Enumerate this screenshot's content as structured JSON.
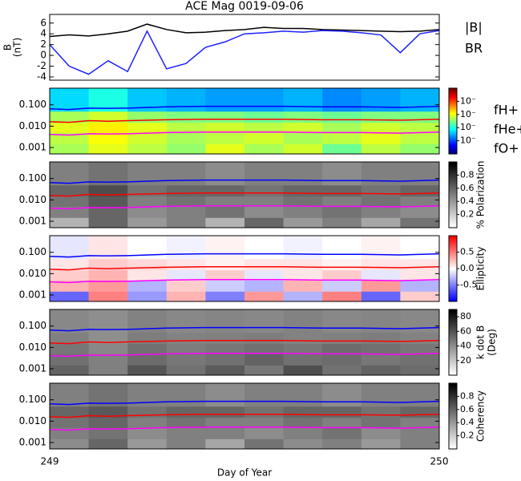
{
  "chart_data": [
    {
      "type": "line",
      "title": "ACE Mag 0019-09-06",
      "ylabel": [
        "B",
        "(nT)"
      ],
      "x": [
        249,
        249.05,
        249.1,
        249.15,
        249.2,
        249.25,
        249.3,
        249.35,
        249.4,
        249.45,
        249.5,
        249.55,
        249.6,
        249.65,
        249.7,
        249.75,
        249.8,
        249.85,
        249.9,
        249.95,
        250
      ],
      "series": [
        {
          "name": "|B|",
          "color": "#000000",
          "values": [
            3.5,
            3.8,
            3.6,
            4.0,
            4.5,
            5.8,
            4.8,
            4.2,
            4.3,
            4.6,
            4.8,
            5.2,
            5.0,
            5.0,
            4.8,
            4.7,
            4.6,
            4.5,
            4.4,
            4.5,
            4.8
          ]
        },
        {
          "name": "BR",
          "color": "#2020ff",
          "values": [
            2.0,
            -2.0,
            -3.5,
            -1.0,
            -3.0,
            4.5,
            -2.5,
            -1.5,
            1.5,
            2.5,
            4.0,
            4.2,
            4.5,
            4.3,
            4.6,
            4.5,
            4.2,
            3.8,
            0.5,
            4.0,
            4.6
          ]
        }
      ],
      "xlim": [
        249,
        250
      ],
      "ylim": [
        -4.6,
        7.6
      ],
      "yticks": [
        -4,
        -2,
        0,
        2,
        4,
        6
      ]
    },
    {
      "type": "heatmap",
      "colormap": "jet",
      "zlim": [
        -6,
        -1
      ],
      "cbar_ticks": [
        {
          "value": -2,
          "label": "10⁻"
        },
        {
          "value": -3,
          "label": "10⁻"
        },
        {
          "value": -4,
          "label": "10⁻"
        },
        {
          "value": -5,
          "label": "10⁻"
        }
      ],
      "cbar_label": [],
      "x_edges": [
        249,
        249.1,
        249.2,
        249.3,
        249.4,
        249.5,
        249.6,
        249.7,
        249.8,
        249.9,
        250
      ],
      "y_edges": [
        0.0005,
        0.0015,
        0.005,
        0.015,
        0.05,
        0.6
      ],
      "z": [
        [
          -3.3,
          -3.0,
          -3.2,
          -3.4,
          -3.0,
          -3.3,
          -3.1,
          -3.6,
          -3.2,
          -3.4
        ],
        [
          -3.2,
          -2.9,
          -3.1,
          -3.3,
          -3.2,
          -3.1,
          -3.3,
          -3.2,
          -3.0,
          -3.2
        ],
        [
          -3.0,
          -2.8,
          -3.0,
          -3.2,
          -3.1,
          -3.2,
          -3.1,
          -3.3,
          -3.1,
          -3.2
        ],
        [
          -3.3,
          -3.1,
          -3.4,
          -3.5,
          -3.5,
          -3.6,
          -3.5,
          -3.6,
          -3.5,
          -3.5
        ],
        [
          -4.3,
          -4.0,
          -4.4,
          -4.5,
          -4.6,
          -4.6,
          -4.5,
          -4.7,
          -4.6,
          -4.5
        ]
      ],
      "x": [
        249,
        249.05,
        249.1,
        249.15,
        249.2,
        249.3,
        249.4,
        249.5,
        249.6,
        249.7,
        249.8,
        249.9,
        250
      ],
      "series": [
        {
          "name": "fH+",
          "color": "#0000ff",
          "values": [
            0.065,
            0.06,
            0.07,
            0.068,
            0.07,
            0.08,
            0.085,
            0.085,
            0.085,
            0.08,
            0.08,
            0.075,
            0.085
          ]
        },
        {
          "name": "fHe+",
          "color": "#ff0000",
          "values": [
            0.016,
            0.015,
            0.018,
            0.017,
            0.018,
            0.02,
            0.021,
            0.021,
            0.021,
            0.02,
            0.02,
            0.019,
            0.021
          ]
        },
        {
          "name": "fO+",
          "color": "#ff00ff",
          "values": [
            0.0041,
            0.0038,
            0.0044,
            0.0043,
            0.0044,
            0.005,
            0.0053,
            0.0053,
            0.0053,
            0.005,
            0.005,
            0.0047,
            0.0053
          ]
        }
      ],
      "xlim": [
        249,
        250
      ],
      "ylim": [
        0.0005,
        0.6
      ],
      "log_y": true,
      "yticks": [
        0.001,
        {
          "value": 0.01,
          "label": "0.010"
        },
        {
          "value": 0.1,
          "label": "0.100"
        }
      ]
    },
    {
      "type": "heatmap",
      "colormap": "gray_r",
      "zlim": [
        0,
        1
      ],
      "cbar_ticks": [
        0.2,
        0.4,
        0.6,
        0.8
      ],
      "cbar_label": [
        "% Polarization"
      ],
      "x_edges": [
        249,
        249.1,
        249.2,
        249.3,
        249.4,
        249.5,
        249.6,
        249.7,
        249.8,
        249.9,
        250
      ],
      "y_edges": [
        0.0005,
        0.0015,
        0.005,
        0.015,
        0.05,
        0.6
      ],
      "z": [
        [
          0.3,
          0.6,
          0.4,
          0.5,
          0.3,
          0.6,
          0.4,
          0.5,
          0.35,
          0.55
        ],
        [
          0.5,
          0.6,
          0.45,
          0.5,
          0.55,
          0.45,
          0.5,
          0.55,
          0.5,
          0.45
        ],
        [
          0.55,
          0.65,
          0.5,
          0.55,
          0.5,
          0.5,
          0.55,
          0.5,
          0.55,
          0.5
        ],
        [
          0.6,
          0.7,
          0.55,
          0.6,
          0.6,
          0.55,
          0.6,
          0.6,
          0.55,
          0.6
        ],
        [
          0.5,
          0.55,
          0.5,
          0.5,
          0.45,
          0.5,
          0.5,
          0.45,
          0.5,
          0.5
        ]
      ],
      "x": [
        249,
        249.05,
        249.1,
        249.15,
        249.2,
        249.3,
        249.4,
        249.5,
        249.6,
        249.7,
        249.8,
        249.9,
        250
      ],
      "series": [
        {
          "color": "#0000ff",
          "values": [
            0.065,
            0.06,
            0.07,
            0.068,
            0.07,
            0.08,
            0.085,
            0.085,
            0.085,
            0.08,
            0.08,
            0.075,
            0.085
          ]
        },
        {
          "color": "#ff0000",
          "values": [
            0.016,
            0.015,
            0.018,
            0.017,
            0.018,
            0.02,
            0.021,
            0.021,
            0.021,
            0.02,
            0.02,
            0.019,
            0.021
          ]
        },
        {
          "color": "#ff00ff",
          "values": [
            0.0041,
            0.0038,
            0.0044,
            0.0043,
            0.0044,
            0.005,
            0.0053,
            0.0053,
            0.0053,
            0.005,
            0.005,
            0.0047,
            0.0053
          ]
        }
      ],
      "xlim": [
        249,
        250
      ],
      "ylim": [
        0.0005,
        0.6
      ],
      "log_y": true,
      "yticks": [
        0.001,
        {
          "value": 0.01,
          "label": "0.010"
        },
        {
          "value": 0.1,
          "label": "0.100"
        }
      ]
    },
    {
      "type": "heatmap",
      "colormap": "bwr",
      "zlim": [
        -1,
        1
      ],
      "cbar_ticks": [
        -0.5,
        {
          "value": 0,
          "label": "0.0"
        },
        0.5
      ],
      "cbar_label": [
        "Ellipticity"
      ],
      "x_edges": [
        249,
        249.1,
        249.2,
        249.3,
        249.4,
        249.5,
        249.6,
        249.7,
        249.8,
        249.9,
        250
      ],
      "y_edges": [
        0.0005,
        0.0015,
        0.005,
        0.015,
        0.05,
        0.6
      ],
      "z": [
        [
          -0.6,
          0.5,
          -0.4,
          0.3,
          -0.5,
          0.4,
          -0.3,
          0.5,
          -0.6,
          0.2
        ],
        [
          0.3,
          0.4,
          -0.3,
          0.2,
          -0.2,
          -0.3,
          0.3,
          -0.2,
          0.4,
          -0.3
        ],
        [
          0.2,
          0.3,
          0.1,
          -0.1,
          0.2,
          -0.1,
          0.1,
          0.2,
          -0.1,
          0.1
        ],
        [
          0.1,
          0.2,
          0.15,
          0.1,
          0.05,
          0.1,
          0.1,
          0.05,
          0.1,
          0.1
        ],
        [
          -0.1,
          0.1,
          0.0,
          -0.05,
          0.05,
          0.0,
          -0.05,
          0.0,
          0.05,
          0.0
        ]
      ],
      "x": [
        249,
        249.05,
        249.1,
        249.15,
        249.2,
        249.3,
        249.4,
        249.5,
        249.6,
        249.7,
        249.8,
        249.9,
        250
      ],
      "series": [
        {
          "color": "#0000ff",
          "values": [
            0.065,
            0.06,
            0.07,
            0.068,
            0.07,
            0.08,
            0.085,
            0.085,
            0.085,
            0.08,
            0.08,
            0.075,
            0.085
          ]
        },
        {
          "color": "#ff0000",
          "values": [
            0.016,
            0.015,
            0.018,
            0.017,
            0.018,
            0.02,
            0.021,
            0.021,
            0.021,
            0.02,
            0.02,
            0.019,
            0.021
          ]
        },
        {
          "color": "#ff00ff",
          "values": [
            0.0041,
            0.0038,
            0.0044,
            0.0043,
            0.0044,
            0.005,
            0.0053,
            0.0053,
            0.0053,
            0.005,
            0.005,
            0.0047,
            0.0053
          ]
        }
      ],
      "xlim": [
        249,
        250
      ],
      "ylim": [
        0.0005,
        0.6
      ],
      "log_y": true,
      "yticks": [
        0.001,
        {
          "value": 0.01,
          "label": "0.010"
        },
        {
          "value": 0.1,
          "label": "0.100"
        }
      ]
    },
    {
      "type": "heatmap",
      "colormap": "gray_r",
      "zlim": [
        0,
        90
      ],
      "cbar_ticks": [
        20,
        40,
        60,
        80
      ],
      "cbar_label": [
        "k dot B",
        "(Deg)"
      ],
      "x_edges": [
        249,
        249.1,
        249.2,
        249.3,
        249.4,
        249.5,
        249.6,
        249.7,
        249.8,
        249.9,
        250
      ],
      "y_edges": [
        0.0005,
        0.0015,
        0.005,
        0.015,
        0.05,
        0.6
      ],
      "z": [
        [
          55,
          45,
          60,
          50,
          58,
          48,
          62,
          50,
          55,
          52
        ],
        [
          50,
          45,
          52,
          48,
          50,
          55,
          50,
          52,
          48,
          50
        ],
        [
          48,
          42,
          50,
          46,
          48,
          50,
          48,
          52,
          50,
          48
        ],
        [
          45,
          40,
          46,
          44,
          45,
          46,
          44,
          45,
          46,
          44
        ],
        [
          42,
          40,
          44,
          42,
          43,
          42,
          44,
          42,
          43,
          42
        ]
      ],
      "x": [
        249,
        249.05,
        249.1,
        249.15,
        249.2,
        249.3,
        249.4,
        249.5,
        249.6,
        249.7,
        249.8,
        249.9,
        250
      ],
      "series": [
        {
          "color": "#0000ff",
          "values": [
            0.065,
            0.06,
            0.07,
            0.068,
            0.07,
            0.08,
            0.085,
            0.085,
            0.085,
            0.08,
            0.08,
            0.075,
            0.085
          ]
        },
        {
          "color": "#ff0000",
          "values": [
            0.016,
            0.015,
            0.018,
            0.017,
            0.018,
            0.02,
            0.021,
            0.021,
            0.021,
            0.02,
            0.02,
            0.019,
            0.021
          ]
        },
        {
          "color": "#ff00ff",
          "values": [
            0.0041,
            0.0038,
            0.0044,
            0.0043,
            0.0044,
            0.005,
            0.0053,
            0.0053,
            0.0053,
            0.005,
            0.005,
            0.0047,
            0.0053
          ]
        }
      ],
      "xlim": [
        249,
        250
      ],
      "ylim": [
        0.0005,
        0.6
      ],
      "log_y": true,
      "yticks": [
        0.001,
        {
          "value": 0.01,
          "label": "0.010"
        },
        {
          "value": 0.1,
          "label": "0.100"
        }
      ]
    },
    {
      "type": "heatmap",
      "colormap": "gray_r",
      "zlim": [
        0,
        1
      ],
      "cbar_ticks": [
        0.2,
        0.4,
        0.6,
        0.8
      ],
      "cbar_label": [
        "Coherency"
      ],
      "x_edges": [
        249,
        249.1,
        249.2,
        249.3,
        249.4,
        249.5,
        249.6,
        249.7,
        249.8,
        249.9,
        250
      ],
      "y_edges": [
        0.0005,
        0.0015,
        0.005,
        0.015,
        0.05,
        0.6
      ],
      "z": [
        [
          0.45,
          0.6,
          0.4,
          0.5,
          0.35,
          0.55,
          0.45,
          0.5,
          0.4,
          0.5
        ],
        [
          0.5,
          0.55,
          0.45,
          0.5,
          0.5,
          0.45,
          0.5,
          0.55,
          0.45,
          0.5
        ],
        [
          0.55,
          0.6,
          0.5,
          0.55,
          0.5,
          0.5,
          0.55,
          0.5,
          0.55,
          0.5
        ],
        [
          0.6,
          0.65,
          0.55,
          0.6,
          0.6,
          0.55,
          0.6,
          0.6,
          0.55,
          0.6
        ],
        [
          0.5,
          0.55,
          0.5,
          0.5,
          0.45,
          0.5,
          0.5,
          0.45,
          0.5,
          0.5
        ]
      ],
      "x": [
        249,
        249.05,
        249.1,
        249.15,
        249.2,
        249.3,
        249.4,
        249.5,
        249.6,
        249.7,
        249.8,
        249.9,
        250
      ],
      "series": [
        {
          "color": "#0000ff",
          "values": [
            0.065,
            0.06,
            0.07,
            0.068,
            0.07,
            0.08,
            0.085,
            0.085,
            0.085,
            0.08,
            0.08,
            0.075,
            0.085
          ]
        },
        {
          "color": "#ff0000",
          "values": [
            0.016,
            0.015,
            0.018,
            0.017,
            0.018,
            0.02,
            0.021,
            0.021,
            0.021,
            0.02,
            0.02,
            0.019,
            0.021
          ]
        },
        {
          "color": "#ff00ff",
          "values": [
            0.0041,
            0.0038,
            0.0044,
            0.0043,
            0.0044,
            0.005,
            0.0053,
            0.0053,
            0.0053,
            0.005,
            0.005,
            0.0047,
            0.0053
          ]
        }
      ],
      "xlim": [
        249,
        250
      ],
      "ylim": [
        0.0005,
        0.6
      ],
      "log_y": true,
      "yticks": [
        0.001,
        {
          "value": 0.01,
          "label": "0.010"
        },
        {
          "value": 0.1,
          "label": "0.100"
        }
      ],
      "xticks": [
        249,
        250
      ],
      "xlabel": "Day of Year"
    }
  ]
}
